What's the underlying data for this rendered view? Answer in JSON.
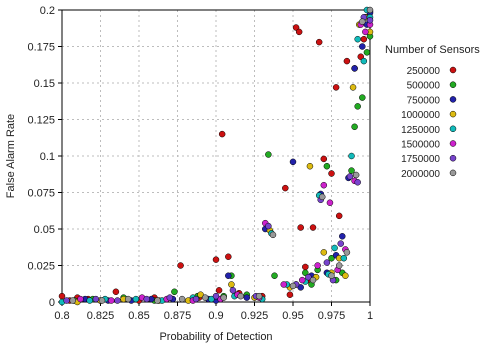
{
  "chart_data": {
    "type": "scatter",
    "title": "",
    "xlabel": "Probability of Detection",
    "ylabel": "False Alarm Rate",
    "xlim": [
      0.8,
      1.0
    ],
    "ylim": [
      0,
      0.2
    ],
    "xticks": [
      "0.8",
      "0.825",
      "0.85",
      "0.875",
      "0.9",
      "0.925",
      "0.95",
      "0.975",
      "1"
    ],
    "yticks": [
      "0",
      "0.025",
      "0.05",
      "0.075",
      "0.1",
      "0.125",
      "0.15",
      "0.175",
      "0.2"
    ],
    "grid": true,
    "legend_title": "Number of Sensors",
    "legend_position": "right",
    "series": [
      {
        "name": "250000",
        "color": "#cc1111",
        "points": [
          [
            0.8,
            0.004
          ],
          [
            0.805,
            0.001
          ],
          [
            0.81,
            0.003
          ],
          [
            0.817,
            0.002
          ],
          [
            0.825,
            0.001
          ],
          [
            0.835,
            0.007
          ],
          [
            0.85,
            0.001
          ],
          [
            0.86,
            0.003
          ],
          [
            0.877,
            0.025
          ],
          [
            0.889,
            0.003
          ],
          [
            0.9,
            0.029
          ],
          [
            0.902,
            0.008
          ],
          [
            0.904,
            0.115
          ],
          [
            0.908,
            0.031
          ],
          [
            0.915,
            0.006
          ],
          [
            0.93,
            0.004
          ],
          [
            0.945,
            0.078
          ],
          [
            0.948,
            0.005
          ],
          [
            0.952,
            0.188
          ],
          [
            0.954,
            0.185
          ],
          [
            0.955,
            0.051
          ],
          [
            0.958,
            0.024
          ],
          [
            0.96,
            0.015
          ],
          [
            0.963,
            0.051
          ],
          [
            0.967,
            0.178
          ],
          [
            0.97,
            0.098
          ],
          [
            0.975,
            0.088
          ],
          [
            0.978,
            0.147
          ],
          [
            0.98,
            0.059
          ],
          [
            0.985,
            0.165
          ],
          [
            0.99,
            0.16
          ],
          [
            0.994,
            0.168
          ],
          [
            0.996,
            0.18
          ],
          [
            0.998,
            0.195
          ],
          [
            1.0,
            0.199
          ]
        ]
      },
      {
        "name": "500000",
        "color": "#22aa22",
        "points": [
          [
            0.808,
            0.001
          ],
          [
            0.82,
            0.002
          ],
          [
            0.84,
            0.003
          ],
          [
            0.86,
            0.001
          ],
          [
            0.873,
            0.007
          ],
          [
            0.888,
            0.004
          ],
          [
            0.905,
            0.004
          ],
          [
            0.91,
            0.018
          ],
          [
            0.92,
            0.005
          ],
          [
            0.934,
            0.101
          ],
          [
            0.938,
            0.018
          ],
          [
            0.952,
            0.012
          ],
          [
            0.958,
            0.02
          ],
          [
            0.962,
            0.012
          ],
          [
            0.966,
            0.022
          ],
          [
            0.972,
            0.093
          ],
          [
            0.975,
            0.03
          ],
          [
            0.978,
            0.015
          ],
          [
            0.982,
            0.02
          ],
          [
            0.988,
            0.09
          ],
          [
            0.99,
            0.12
          ],
          [
            0.992,
            0.134
          ],
          [
            0.995,
            0.14
          ],
          [
            0.998,
            0.171
          ],
          [
            1.0,
            0.182
          ]
        ]
      },
      {
        "name": "750000",
        "color": "#2222aa",
        "points": [
          [
            0.815,
            0.002
          ],
          [
            0.83,
            0.001
          ],
          [
            0.845,
            0.001
          ],
          [
            0.858,
            0.002
          ],
          [
            0.872,
            0.002
          ],
          [
            0.895,
            0.002
          ],
          [
            0.9,
            0.001
          ],
          [
            0.908,
            0.018
          ],
          [
            0.92,
            0.003
          ],
          [
            0.932,
            0.05
          ],
          [
            0.95,
            0.096
          ],
          [
            0.955,
            0.01
          ],
          [
            0.962,
            0.018
          ],
          [
            0.968,
            0.074
          ],
          [
            0.972,
            0.02
          ],
          [
            0.978,
            0.032
          ],
          [
            0.982,
            0.045
          ],
          [
            0.986,
            0.085
          ],
          [
            0.99,
            0.16
          ],
          [
            0.995,
            0.175
          ],
          [
            0.998,
            0.19
          ],
          [
            1.0,
            0.198
          ]
        ]
      },
      {
        "name": "1000000",
        "color": "#ddbb11",
        "points": [
          [
            0.81,
            0.0
          ],
          [
            0.825,
            0.001
          ],
          [
            0.84,
            0.002
          ],
          [
            0.863,
            0.001
          ],
          [
            0.882,
            0.001
          ],
          [
            0.89,
            0.005
          ],
          [
            0.91,
            0.012
          ],
          [
            0.925,
            0.003
          ],
          [
            0.935,
            0.049
          ],
          [
            0.948,
            0.01
          ],
          [
            0.961,
            0.093
          ],
          [
            0.965,
            0.017
          ],
          [
            0.97,
            0.034
          ],
          [
            0.975,
            0.02
          ],
          [
            0.98,
            0.03
          ],
          [
            0.984,
            0.018
          ],
          [
            0.989,
            0.147
          ],
          [
            0.993,
            0.19
          ],
          [
            0.997,
            0.195
          ],
          [
            1.0,
            0.185
          ]
        ]
      },
      {
        "name": "1250000",
        "color": "#11bbbb",
        "points": [
          [
            0.8,
            0.0
          ],
          [
            0.818,
            0.001
          ],
          [
            0.828,
            0.002
          ],
          [
            0.848,
            0.002
          ],
          [
            0.865,
            0.001
          ],
          [
            0.885,
            0.003
          ],
          [
            0.897,
            0.002
          ],
          [
            0.912,
            0.004
          ],
          [
            0.93,
            0.002
          ],
          [
            0.936,
            0.047
          ],
          [
            0.946,
            0.012
          ],
          [
            0.958,
            0.014
          ],
          [
            0.967,
            0.073
          ],
          [
            0.973,
            0.019
          ],
          [
            0.977,
            0.037
          ],
          [
            0.983,
            0.03
          ],
          [
            0.988,
            0.1
          ],
          [
            0.992,
            0.18
          ],
          [
            0.996,
            0.165
          ],
          [
            0.998,
            0.2
          ],
          [
            1.0,
            0.195
          ]
        ]
      },
      {
        "name": "1500000",
        "color": "#cc22cc",
        "points": [
          [
            0.812,
            0.002
          ],
          [
            0.832,
            0.001
          ],
          [
            0.852,
            0.003
          ],
          [
            0.868,
            0.002
          ],
          [
            0.885,
            0.001
          ],
          [
            0.903,
            0.002
          ],
          [
            0.914,
            0.005
          ],
          [
            0.928,
            0.003
          ],
          [
            0.932,
            0.054
          ],
          [
            0.944,
            0.012
          ],
          [
            0.956,
            0.015
          ],
          [
            0.966,
            0.025
          ],
          [
            0.97,
            0.08
          ],
          [
            0.974,
            0.068
          ],
          [
            0.979,
            0.022
          ],
          [
            0.984,
            0.036
          ],
          [
            0.99,
            0.083
          ],
          [
            0.994,
            0.19
          ],
          [
            0.997,
            0.185
          ],
          [
            1.0,
            0.19
          ]
        ]
      },
      {
        "name": "1750000",
        "color": "#7744cc",
        "points": [
          [
            0.803,
            0.001
          ],
          [
            0.822,
            0.002
          ],
          [
            0.836,
            0.001
          ],
          [
            0.855,
            0.002
          ],
          [
            0.87,
            0.003
          ],
          [
            0.887,
            0.002
          ],
          [
            0.9,
            0.004
          ],
          [
            0.911,
            0.008
          ],
          [
            0.926,
            0.004
          ],
          [
            0.934,
            0.052
          ],
          [
            0.952,
            0.012
          ],
          [
            0.96,
            0.017
          ],
          [
            0.968,
            0.07
          ],
          [
            0.972,
            0.027
          ],
          [
            0.976,
            0.015
          ],
          [
            0.981,
            0.04
          ],
          [
            0.987,
            0.086
          ],
          [
            0.992,
            0.082
          ],
          [
            0.996,
            0.195
          ],
          [
            1.0,
            0.193
          ]
        ]
      },
      {
        "name": "2000000",
        "color": "#999999",
        "points": [
          [
            0.807,
            0.001
          ],
          [
            0.826,
            0.001
          ],
          [
            0.843,
            0.002
          ],
          [
            0.862,
            0.001
          ],
          [
            0.878,
            0.002
          ],
          [
            0.893,
            0.003
          ],
          [
            0.905,
            0.003
          ],
          [
            0.916,
            0.004
          ],
          [
            0.928,
            0.004
          ],
          [
            0.937,
            0.046
          ],
          [
            0.95,
            0.011
          ],
          [
            0.963,
            0.015
          ],
          [
            0.969,
            0.072
          ],
          [
            0.975,
            0.018
          ],
          [
            0.98,
            0.025
          ],
          [
            0.985,
            0.034
          ],
          [
            0.991,
            0.087
          ],
          [
            0.995,
            0.192
          ],
          [
            1.0,
            0.2
          ]
        ]
      }
    ]
  }
}
